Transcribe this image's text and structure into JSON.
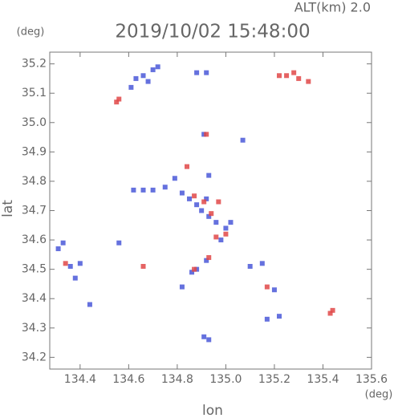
{
  "chart_data": {
    "type": "scatter",
    "title": "2019/10/02 15:48:00",
    "subtitle": "ALT(km) 2.0",
    "y_unit": "(deg)",
    "x_unit": "(deg)",
    "x_label": "lon",
    "y_label": "lat",
    "xlim": [
      134.275,
      135.6
    ],
    "ylim": [
      34.16,
      35.24
    ],
    "xticks": [
      134.4,
      134.6,
      134.8,
      {
        "value": 135,
        "label": "135.0"
      },
      135.2,
      135.4,
      135.6
    ],
    "yticks": [
      34.2,
      34.3,
      34.4,
      34.5,
      34.6,
      34.7,
      34.8,
      34.9,
      {
        "value": 35,
        "label": "35.0"
      },
      35.1,
      35.2
    ],
    "series": [
      {
        "color": "#4a58d8",
        "x": [
          134.63,
          134.66,
          134.7,
          134.72,
          134.68,
          134.61,
          134.88,
          134.92,
          134.91,
          135.07,
          134.33,
          134.31,
          134.36,
          134.38,
          134.44,
          134.56,
          134.4,
          134.62,
          134.66,
          134.7,
          134.75,
          134.79,
          134.82,
          134.85,
          134.88,
          134.9,
          134.93,
          134.96,
          135.0,
          134.98,
          134.92,
          135.02,
          134.93,
          134.88,
          134.92,
          134.86,
          134.82,
          134.93,
          134.91,
          135.1,
          135.15,
          135.2,
          135.17,
          135.22
        ],
        "y": [
          35.15,
          35.16,
          35.18,
          35.19,
          35.14,
          35.12,
          35.17,
          35.17,
          34.96,
          34.94,
          34.59,
          34.57,
          34.51,
          34.47,
          34.38,
          34.59,
          34.52,
          34.77,
          34.77,
          34.77,
          34.78,
          34.81,
          34.76,
          34.74,
          34.72,
          34.7,
          34.68,
          34.66,
          34.64,
          34.6,
          34.74,
          34.66,
          34.82,
          34.5,
          34.53,
          34.49,
          34.44,
          34.26,
          34.27,
          34.51,
          34.52,
          34.43,
          34.33,
          34.34
        ]
      },
      {
        "color": "#e04848",
        "x": [
          135.25,
          135.28,
          135.3,
          135.34,
          135.22,
          134.55,
          134.56,
          134.92,
          134.84,
          134.87,
          134.91,
          134.97,
          134.94,
          135.0,
          134.96,
          134.34,
          134.87,
          134.93,
          134.66,
          135.17,
          135.44,
          135.43
        ],
        "y": [
          35.16,
          35.17,
          35.15,
          35.14,
          35.16,
          35.07,
          35.08,
          34.96,
          34.85,
          34.75,
          34.73,
          34.73,
          34.69,
          34.62,
          34.61,
          34.52,
          34.5,
          34.54,
          34.51,
          34.44,
          34.36,
          34.35
        ]
      }
    ]
  }
}
